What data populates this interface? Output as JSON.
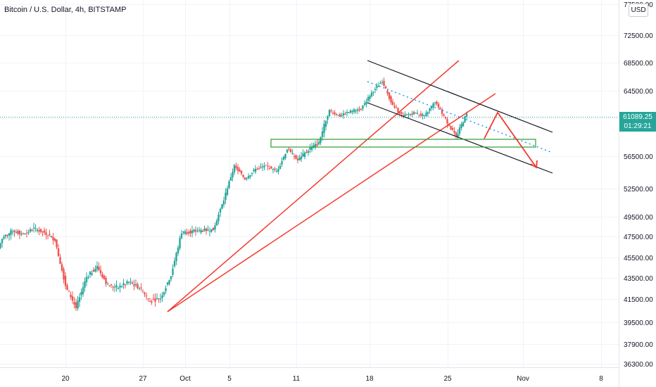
{
  "header": {
    "symbol_title": "Bitcoin / U.S. Dollar, 4h, BITSTAMP",
    "currency": "USD"
  },
  "price_tag": {
    "price": "61089.25",
    "countdown": "01:29:21"
  },
  "colors": {
    "up": "#26a69a",
    "down": "#ef5350",
    "trend": "#f23a2e",
    "channel": "#131722",
    "support": "#2e9c2e",
    "mid": "#2196f3"
  },
  "chart_data": {
    "type": "candlestick",
    "title": "Bitcoin / U.S. Dollar, 4h, BITSTAMP",
    "yticks": [
      "77500.00",
      "72500.00",
      "68500.00",
      "64500.00",
      "60500.00",
      "56500.00",
      "52500.00",
      "49500.00",
      "47500.00",
      "45500.00",
      "43500.00",
      "41500.00",
      "39500.00",
      "37900.00",
      "36300.00"
    ],
    "xticks": [
      "20",
      "27",
      "Oct",
      "5",
      "11",
      "18",
      "25",
      "Nov",
      "8"
    ],
    "last_price": 61089.25,
    "close_path": [
      [
        "Sep 13",
        44600
      ],
      [
        "Sep 14",
        47300
      ],
      [
        "Sep 15",
        48100
      ],
      [
        "Sep 16",
        47700
      ],
      [
        "Sep 17",
        48300
      ],
      [
        "Sep 18",
        47900
      ],
      [
        "Sep 19",
        47200
      ],
      [
        "Sep 20",
        42800
      ],
      [
        "Sep 21",
        40700
      ],
      [
        "Sep 22",
        43600
      ],
      [
        "Sep 23",
        44600
      ],
      [
        "Sep 24",
        42800
      ],
      [
        "Sep 25",
        42600
      ],
      [
        "Sep 26",
        43100
      ],
      [
        "Sep 27",
        42600
      ],
      [
        "Sep 28",
        41300
      ],
      [
        "Sep 29",
        41600
      ],
      [
        "Sep 30",
        43800
      ],
      [
        "Oct 1",
        47900
      ],
      [
        "Oct 2",
        48000
      ],
      [
        "Oct 3",
        48100
      ],
      [
        "Oct 4",
        48200
      ],
      [
        "Oct 5",
        51300
      ],
      [
        "Oct 6",
        55300
      ],
      [
        "Oct 7",
        53700
      ],
      [
        "Oct 8",
        54900
      ],
      [
        "Oct 9",
        55300
      ],
      [
        "Oct 10",
        54600
      ],
      [
        "Oct 11",
        57300
      ],
      [
        "Oct 12",
        56000
      ],
      [
        "Oct 13",
        57200
      ],
      [
        "Oct 14",
        57900
      ],
      [
        "Oct 15",
        61600
      ],
      [
        "Oct 16",
        60800
      ],
      [
        "Oct 17",
        61500
      ],
      [
        "Oct 18",
        61900
      ],
      [
        "Oct 19",
        64200
      ],
      [
        "Oct 20",
        65900
      ],
      [
        "Oct 21",
        62300
      ],
      [
        "Oct 22",
        60800
      ],
      [
        "Oct 23",
        61300
      ],
      [
        "Oct 24",
        60800
      ],
      [
        "Oct 25",
        62900
      ],
      [
        "Oct 26",
        60400
      ],
      [
        "Oct 27",
        58500
      ],
      [
        "Oct 28",
        61100
      ]
    ],
    "drawings": {
      "channel": "descending parallel channel with dotted midline",
      "support_zone": [
        57300,
        58300
      ],
      "trendlines": 2,
      "projection": "zigzag arrow down toward lower channel boundary"
    }
  }
}
